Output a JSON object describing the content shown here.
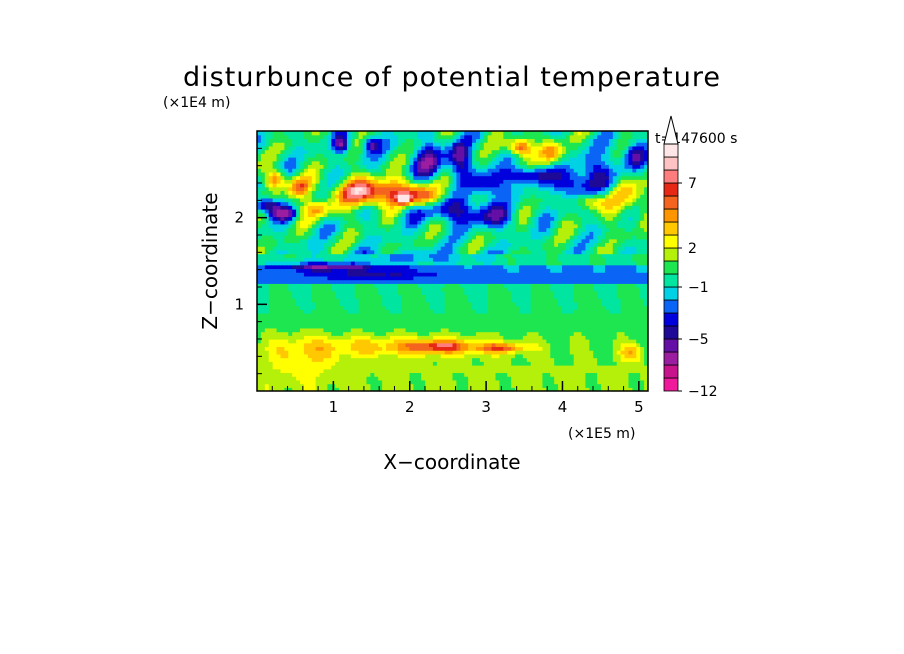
{
  "chart_data": {
    "type": "heatmap",
    "title": "disturbunce of potential temperature",
    "time_label": "t=147600 s",
    "xlabel": "X−coordinate",
    "ylabel": "Z−coordinate",
    "x_unit": "(×1E5 m)",
    "y_unit": "(×1E4 m)",
    "x_ticks": [
      {
        "value": 1,
        "label": "1"
      },
      {
        "value": 2,
        "label": "2"
      },
      {
        "value": 3,
        "label": "3"
      },
      {
        "value": 4,
        "label": "4"
      },
      {
        "value": 5,
        "label": "5"
      }
    ],
    "y_ticks": [
      {
        "value": 1,
        "label": "1"
      },
      {
        "value": 2,
        "label": "2"
      }
    ],
    "xlim": [
      0,
      5.12
    ],
    "ylim": [
      0,
      3.0
    ],
    "x_minor_step": 0.2,
    "y_minor_step": 0.2,
    "colorbar": {
      "levels": [
        -12,
        -10,
        -8,
        -6,
        -5,
        -4,
        -3,
        -2,
        -1,
        0,
        1,
        2,
        3,
        4,
        5,
        6,
        7,
        8,
        9
      ],
      "colors": [
        "#f0199b",
        "#c8148c",
        "#9b1ea0",
        "#640fa5",
        "#1e0a96",
        "#0000dc",
        "#0a64f5",
        "#00d2e6",
        "#00e6a0",
        "#1ee650",
        "#b4f00a",
        "#ffff00",
        "#ffc800",
        "#ff9600",
        "#f5641e",
        "#e62814",
        "#ff7d7d",
        "#ffc3c3",
        "#ffe6e6"
      ],
      "tick_labels": [
        {
          "value": 7,
          "label": "7"
        },
        {
          "value": 2,
          "label": "2"
        },
        {
          "value": -1,
          "label": "−1"
        },
        {
          "value": -5,
          "label": "−5"
        },
        {
          "value": -12,
          "label": "−12"
        }
      ],
      "extend": "max"
    },
    "features": [
      {
        "x": 0.12,
        "z": 2.15,
        "rx": 0.18,
        "rz": 0.08,
        "value": -6
      },
      {
        "x": 0.35,
        "z": 2.05,
        "rx": 0.18,
        "rz": 0.07,
        "value": -5
      },
      {
        "x": 0.25,
        "z": 2.45,
        "rx": 0.12,
        "rz": 0.1,
        "value": 5
      },
      {
        "x": 0.55,
        "z": 2.35,
        "rx": 0.15,
        "rz": 0.12,
        "value": 6
      },
      {
        "x": 0.8,
        "z": 2.1,
        "rx": 0.2,
        "rz": 0.1,
        "value": 4
      },
      {
        "x": 1.3,
        "z": 2.3,
        "rx": 0.3,
        "rz": 0.15,
        "value": 6
      },
      {
        "x": 1.75,
        "z": 2.3,
        "rx": 0.4,
        "rz": 0.15,
        "value": 6
      },
      {
        "x": 1.92,
        "z": 2.22,
        "rx": 0.08,
        "rz": 0.05,
        "value": 9
      },
      {
        "x": 2.2,
        "z": 2.25,
        "rx": 0.25,
        "rz": 0.12,
        "value": 5
      },
      {
        "x": 1.1,
        "z": 2.85,
        "rx": 0.1,
        "rz": 0.1,
        "value": -5
      },
      {
        "x": 1.5,
        "z": 2.85,
        "rx": 0.12,
        "rz": 0.1,
        "value": -5
      },
      {
        "x": 2.25,
        "z": 2.65,
        "rx": 0.2,
        "rz": 0.2,
        "value": -5
      },
      {
        "x": 2.65,
        "z": 2.7,
        "rx": 0.15,
        "rz": 0.2,
        "value": -5
      },
      {
        "x": 2.55,
        "z": 2.1,
        "rx": 0.5,
        "rz": 0.15,
        "value": -4
      },
      {
        "x": 3.1,
        "z": 2.0,
        "rx": 0.3,
        "rz": 0.12,
        "value": -3
      },
      {
        "x": 3.45,
        "z": 2.82,
        "rx": 0.15,
        "rz": 0.1,
        "value": 7
      },
      {
        "x": 3.55,
        "z": 2.5,
        "rx": 0.25,
        "rz": 0.1,
        "value": -5
      },
      {
        "x": 3.05,
        "z": 2.4,
        "rx": 0.2,
        "rz": 0.15,
        "value": -5
      },
      {
        "x": 3.85,
        "z": 2.75,
        "rx": 0.15,
        "rz": 0.15,
        "value": 5
      },
      {
        "x": 4.1,
        "z": 2.4,
        "rx": 0.2,
        "rz": 0.2,
        "value": -5
      },
      {
        "x": 4.35,
        "z": 2.2,
        "rx": 0.25,
        "rz": 0.1,
        "value": 4
      },
      {
        "x": 4.6,
        "z": 2.5,
        "rx": 0.3,
        "rz": 0.25,
        "value": -4
      },
      {
        "x": 4.85,
        "z": 2.3,
        "rx": 0.25,
        "rz": 0.3,
        "value": 4
      },
      {
        "x": 4.95,
        "z": 2.75,
        "rx": 0.15,
        "rz": 0.15,
        "value": -4
      },
      {
        "x": 0.9,
        "z": 1.45,
        "rx": 0.6,
        "rz": 0.05,
        "value": -4
      },
      {
        "x": 2.1,
        "z": 1.55,
        "rx": 0.8,
        "rz": 0.08,
        "value": -2
      },
      {
        "x": 1.5,
        "z": 1.35,
        "rx": 0.9,
        "rz": 0.06,
        "value": -2
      },
      {
        "x": 2.0,
        "z": 0.52,
        "rx": 1.3,
        "rz": 0.12,
        "value": 3
      },
      {
        "x": 2.4,
        "z": 0.52,
        "rx": 0.35,
        "rz": 0.06,
        "value": 4
      },
      {
        "x": 3.2,
        "z": 0.5,
        "rx": 0.3,
        "rz": 0.05,
        "value": 4
      },
      {
        "x": 0.6,
        "z": 0.4,
        "rx": 0.5,
        "rz": 0.25,
        "value": 2
      },
      {
        "x": 4.9,
        "z": 0.45,
        "rx": 0.15,
        "rz": 0.1,
        "value": 3
      },
      {
        "x": 1.0,
        "z": 0.12,
        "rx": 0.25,
        "rz": 0.05,
        "value": 0
      },
      {
        "x": 3.0,
        "z": 0.15,
        "rx": 0.3,
        "rz": 0.05,
        "value": 0
      }
    ]
  }
}
